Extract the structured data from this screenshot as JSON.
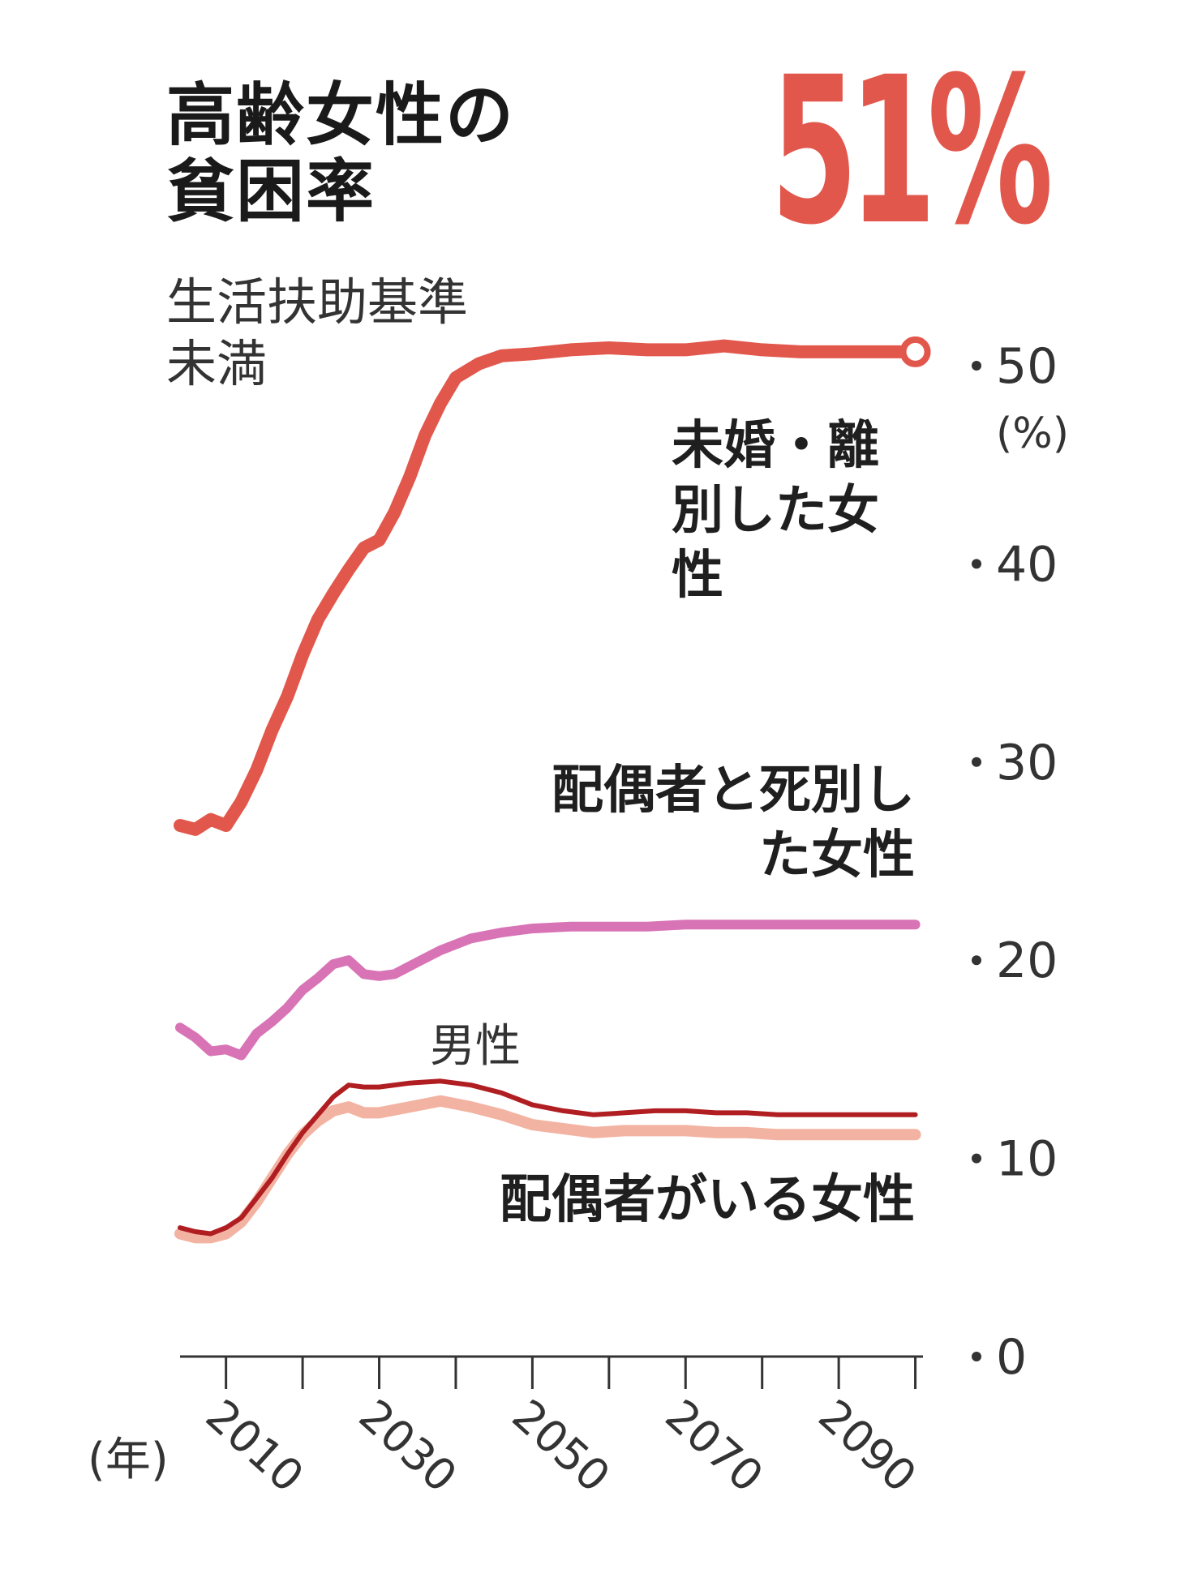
{
  "title_lines": [
    "高齢女性の",
    "貧困率"
  ],
  "subtitle_lines": [
    "生活扶助基準",
    "未満"
  ],
  "headline": "51%",
  "y_unit": "(%)",
  "x_unit": "(年)",
  "colors": {
    "never_married_divorced": "#e2574c",
    "widowed": "#d874b6",
    "men": "#b01e22",
    "married_women": "#f3b3a2",
    "axis": "#333333",
    "headline": "#e2574c"
  },
  "chart_data": {
    "type": "line",
    "xlim": [
      2004,
      2101
    ],
    "ylim": [
      0,
      50
    ],
    "y_ticks": [
      0,
      10,
      20,
      30,
      40,
      50
    ],
    "x_ticks": [
      2010,
      2030,
      2050,
      2070,
      2090
    ],
    "x_minor_ticks": [
      2010,
      2020,
      2030,
      2040,
      2050,
      2060,
      2070,
      2080,
      2090,
      2100
    ],
    "series": [
      {
        "key": "never_married_divorced",
        "name": "未婚・離別した女性",
        "points": [
          [
            2004,
            26.8
          ],
          [
            2006,
            26.6
          ],
          [
            2008,
            27.1
          ],
          [
            2010,
            26.8
          ],
          [
            2012,
            28.0
          ],
          [
            2014,
            29.6
          ],
          [
            2016,
            31.6
          ],
          [
            2018,
            33.3
          ],
          [
            2020,
            35.4
          ],
          [
            2022,
            37.2
          ],
          [
            2024,
            38.5
          ],
          [
            2026,
            39.7
          ],
          [
            2028,
            40.8
          ],
          [
            2030,
            41.2
          ],
          [
            2032,
            42.6
          ],
          [
            2034,
            44.4
          ],
          [
            2036,
            46.5
          ],
          [
            2038,
            48.1
          ],
          [
            2040,
            49.4
          ],
          [
            2043,
            50.1
          ],
          [
            2046,
            50.5
          ],
          [
            2050,
            50.6
          ],
          [
            2055,
            50.8
          ],
          [
            2060,
            50.9
          ],
          [
            2065,
            50.8
          ],
          [
            2070,
            50.8
          ],
          [
            2075,
            51.0
          ],
          [
            2080,
            50.8
          ],
          [
            2085,
            50.7
          ],
          [
            2090,
            50.7
          ],
          [
            2095,
            50.7
          ],
          [
            2100,
            50.7
          ]
        ]
      },
      {
        "key": "widowed",
        "name": "配偶者と死別した女性",
        "points": [
          [
            2004,
            16.6
          ],
          [
            2006,
            16.1
          ],
          [
            2008,
            15.4
          ],
          [
            2010,
            15.5
          ],
          [
            2012,
            15.2
          ],
          [
            2014,
            16.3
          ],
          [
            2016,
            16.9
          ],
          [
            2018,
            17.6
          ],
          [
            2020,
            18.5
          ],
          [
            2022,
            19.1
          ],
          [
            2024,
            19.8
          ],
          [
            2026,
            20.0
          ],
          [
            2028,
            19.3
          ],
          [
            2030,
            19.2
          ],
          [
            2032,
            19.3
          ],
          [
            2035,
            19.9
          ],
          [
            2038,
            20.5
          ],
          [
            2042,
            21.1
          ],
          [
            2046,
            21.4
          ],
          [
            2050,
            21.6
          ],
          [
            2055,
            21.7
          ],
          [
            2060,
            21.7
          ],
          [
            2065,
            21.7
          ],
          [
            2070,
            21.8
          ],
          [
            2075,
            21.8
          ],
          [
            2080,
            21.8
          ],
          [
            2085,
            21.8
          ],
          [
            2090,
            21.8
          ],
          [
            2095,
            21.8
          ],
          [
            2100,
            21.8
          ]
        ]
      },
      {
        "key": "men",
        "name": "男性",
        "points": [
          [
            2004,
            6.5
          ],
          [
            2006,
            6.3
          ],
          [
            2008,
            6.2
          ],
          [
            2010,
            6.5
          ],
          [
            2012,
            7.0
          ],
          [
            2014,
            8.0
          ],
          [
            2016,
            9.0
          ],
          [
            2018,
            10.2
          ],
          [
            2020,
            11.3
          ],
          [
            2022,
            12.2
          ],
          [
            2024,
            13.1
          ],
          [
            2026,
            13.7
          ],
          [
            2028,
            13.6
          ],
          [
            2030,
            13.6
          ],
          [
            2034,
            13.8
          ],
          [
            2038,
            13.9
          ],
          [
            2042,
            13.7
          ],
          [
            2046,
            13.3
          ],
          [
            2050,
            12.7
          ],
          [
            2054,
            12.4
          ],
          [
            2058,
            12.2
          ],
          [
            2062,
            12.3
          ],
          [
            2066,
            12.4
          ],
          [
            2070,
            12.4
          ],
          [
            2074,
            12.3
          ],
          [
            2078,
            12.3
          ],
          [
            2082,
            12.2
          ],
          [
            2086,
            12.2
          ],
          [
            2090,
            12.2
          ],
          [
            2095,
            12.2
          ],
          [
            2100,
            12.2
          ]
        ]
      },
      {
        "key": "married_women",
        "name": "配偶者がいる女性",
        "points": [
          [
            2004,
            6.2
          ],
          [
            2006,
            6.0
          ],
          [
            2008,
            6.0
          ],
          [
            2010,
            6.2
          ],
          [
            2012,
            6.8
          ],
          [
            2014,
            7.8
          ],
          [
            2016,
            9.0
          ],
          [
            2018,
            10.2
          ],
          [
            2020,
            11.2
          ],
          [
            2022,
            11.9
          ],
          [
            2024,
            12.4
          ],
          [
            2026,
            12.6
          ],
          [
            2028,
            12.3
          ],
          [
            2030,
            12.3
          ],
          [
            2034,
            12.6
          ],
          [
            2038,
            12.9
          ],
          [
            2042,
            12.6
          ],
          [
            2046,
            12.2
          ],
          [
            2050,
            11.7
          ],
          [
            2054,
            11.5
          ],
          [
            2058,
            11.3
          ],
          [
            2062,
            11.4
          ],
          [
            2066,
            11.4
          ],
          [
            2070,
            11.4
          ],
          [
            2074,
            11.3
          ],
          [
            2078,
            11.3
          ],
          [
            2082,
            11.2
          ],
          [
            2086,
            11.2
          ],
          [
            2090,
            11.2
          ],
          [
            2095,
            11.2
          ],
          [
            2100,
            11.2
          ]
        ]
      }
    ],
    "end_marker_series": "never_married_divorced"
  }
}
